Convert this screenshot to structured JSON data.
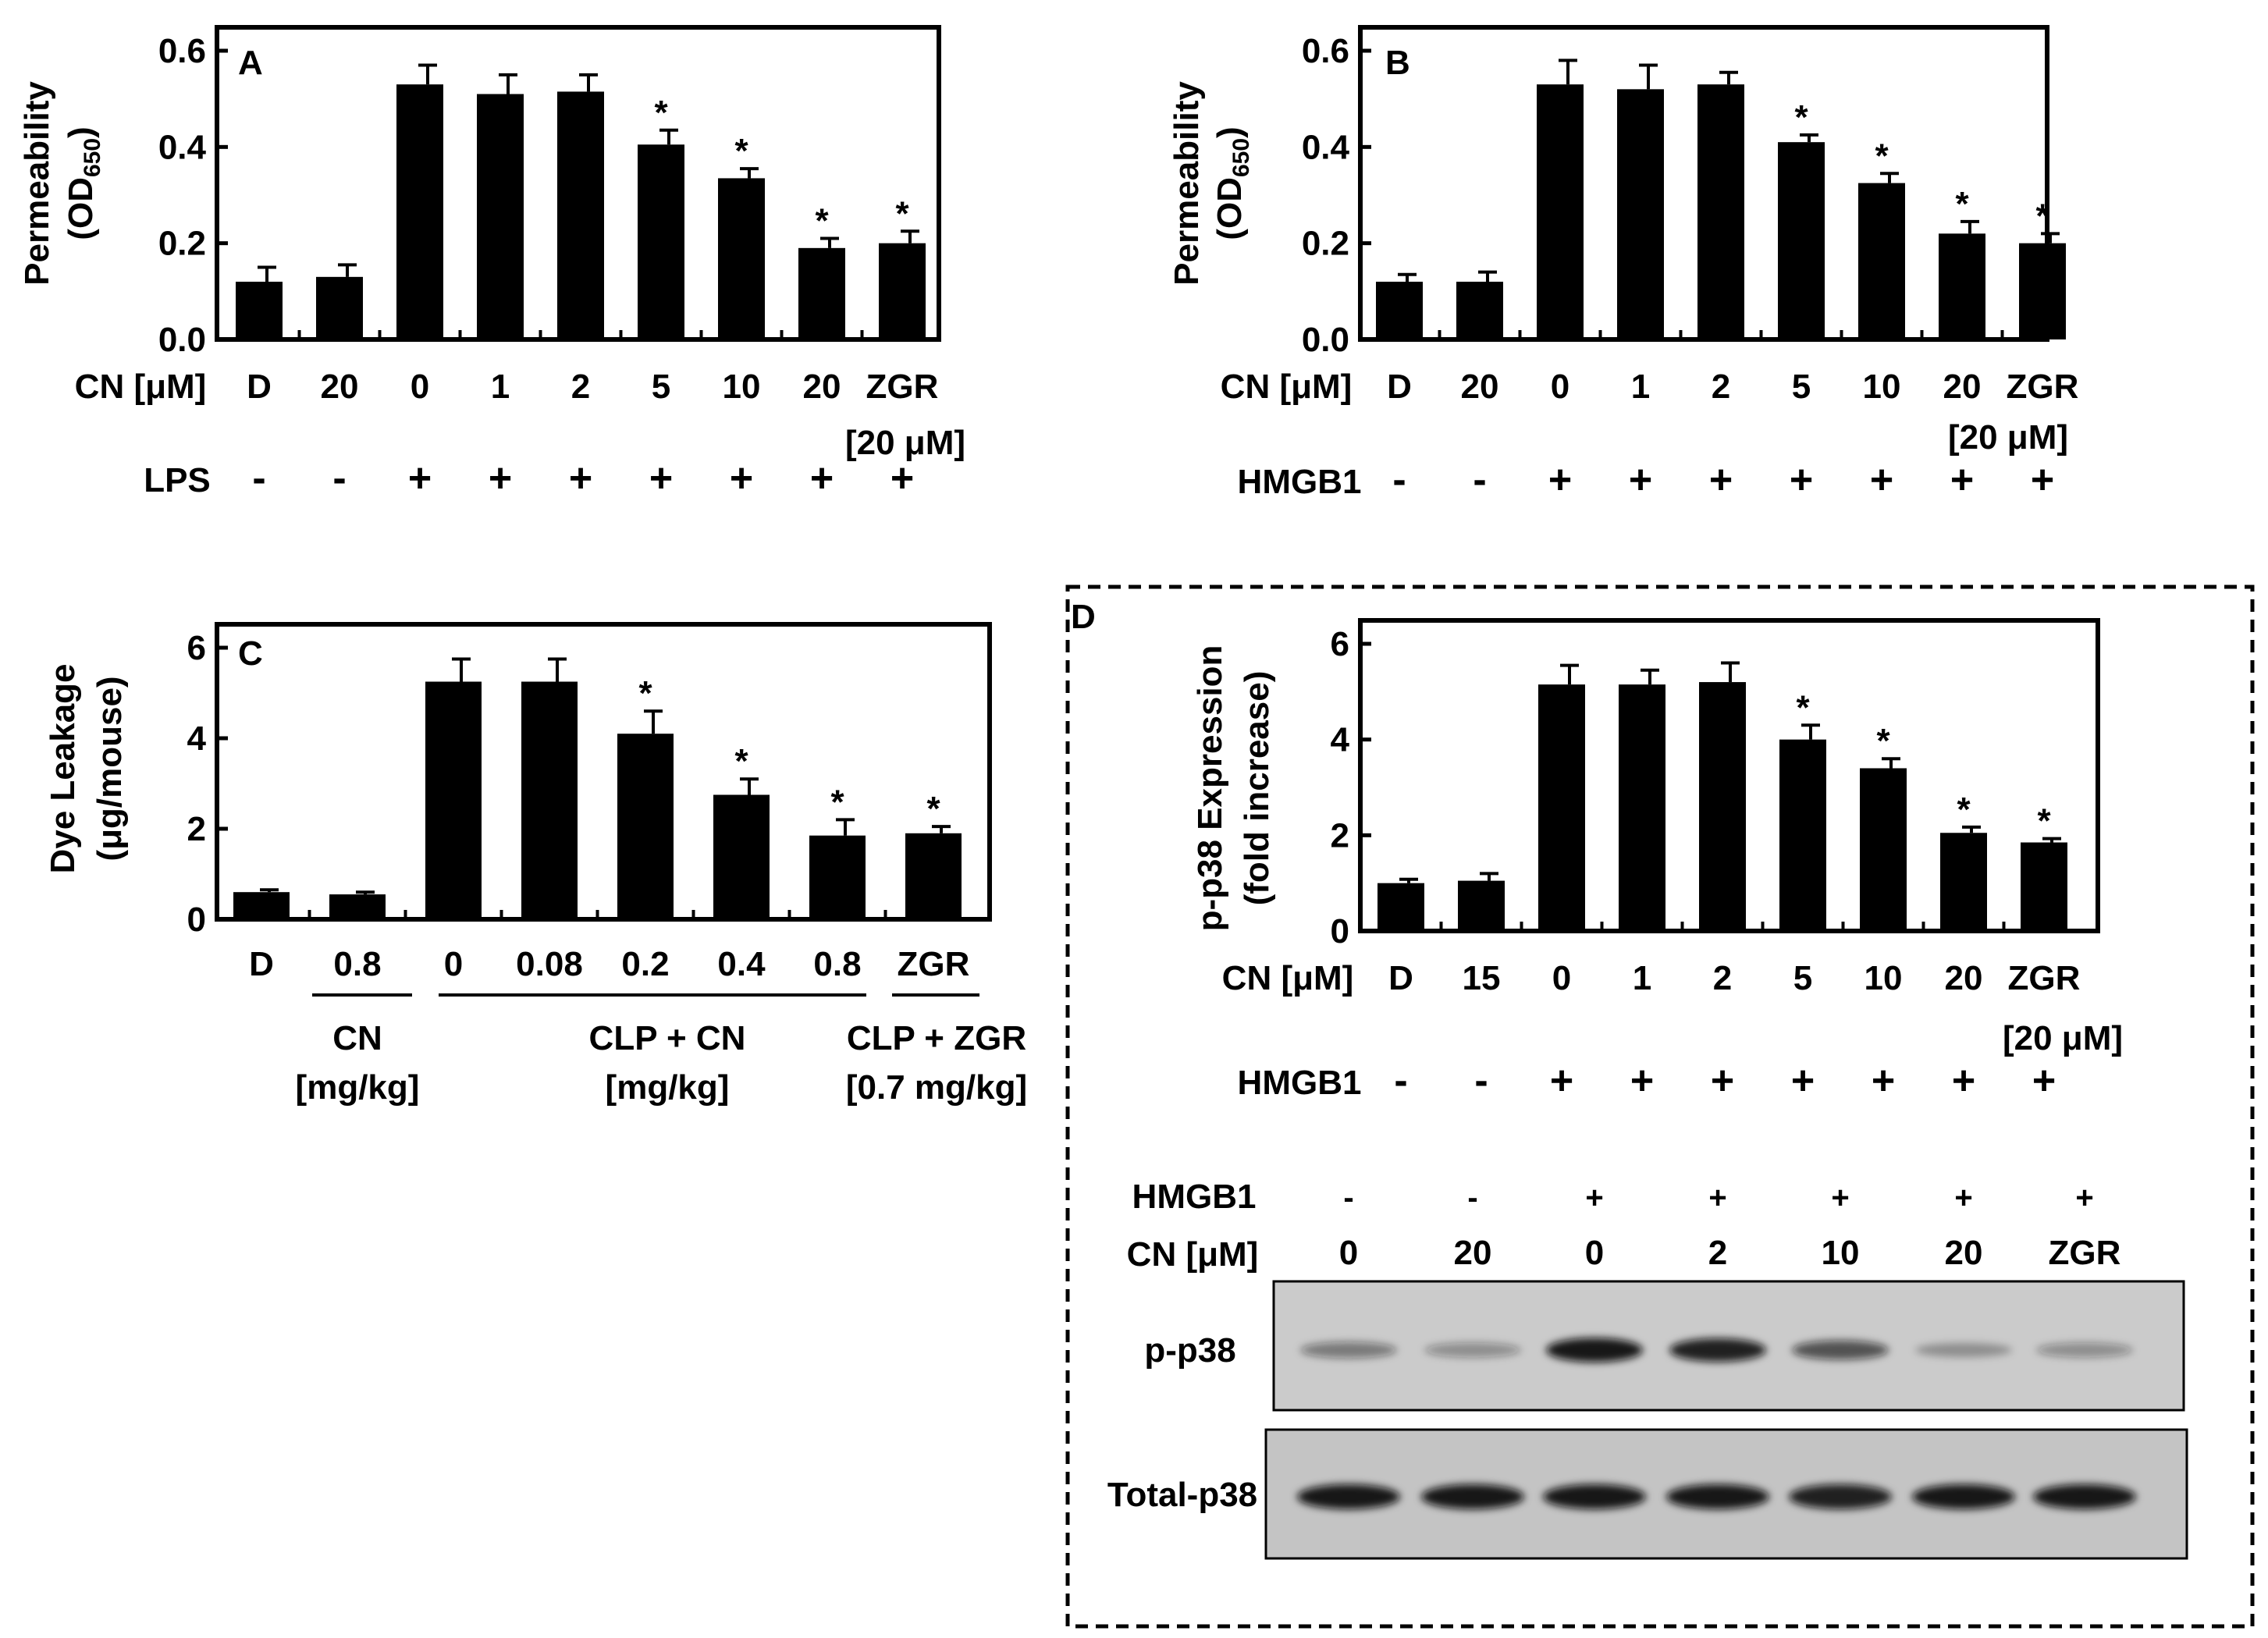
{
  "panels": {
    "A": {
      "letter": "A",
      "ylabel_main": "Permeability",
      "ylabel_unit_prefix": "(OD",
      "ylabel_unit_sub": "650",
      "ylabel_unit_suffix": ")",
      "cn_label": "CN [μM]",
      "zgr_dose": "[20 μM]",
      "treatment_label": "LPS",
      "treatment_signs": [
        "-",
        "-",
        "+",
        "+",
        "+",
        "+",
        "+",
        "+",
        "+"
      ]
    },
    "B": {
      "letter": "B",
      "ylabel_main": "Permeability",
      "ylabel_unit_prefix": "(OD",
      "ylabel_unit_sub": "650",
      "ylabel_unit_suffix": ")",
      "cn_label": "CN [μM]",
      "zgr_dose": "[20 μM]",
      "treatment_label": "HMGB1",
      "treatment_signs": [
        "-",
        "-",
        "+",
        "+",
        "+",
        "+",
        "+",
        "+",
        "+"
      ]
    },
    "C": {
      "letter": "C",
      "ylabel_main": "Dye Leakage",
      "ylabel_unit": "(μg/mouse)",
      "groups": [
        {
          "line1": "CN",
          "line2": "[mg/kg]"
        },
        {
          "line1": "CLP + CN",
          "line2": "[mg/kg]"
        },
        {
          "line1": "CLP + ZGR",
          "line2": "[0.7 mg/kg]"
        }
      ]
    },
    "D": {
      "letter": "D",
      "ylabel_main": "p-p38 Expression",
      "ylabel_unit": "(fold increase)",
      "cn_label": "CN [μM]",
      "zgr_dose": "[20 μM]",
      "treatment_label": "HMGB1",
      "treatment_signs": [
        "-",
        "-",
        "+",
        "+",
        "+",
        "+",
        "+",
        "+",
        "+"
      ],
      "blot": {
        "hmgb1_label": "HMGB1",
        "hmgb1_signs": [
          "-",
          "-",
          "+",
          "+",
          "+",
          "+",
          "+"
        ],
        "cn_label": "CN [μM]",
        "cn_doses": [
          "0",
          "20",
          "0",
          "2",
          "10",
          "20",
          "ZGR"
        ],
        "row1_label": "p-p38",
        "row2_label": "Total-p38",
        "row1_intensity": [
          0.45,
          0.35,
          0.95,
          0.9,
          0.65,
          0.3,
          0.35
        ],
        "row2_intensity": [
          0.95,
          0.95,
          0.95,
          0.95,
          0.9,
          0.95,
          0.95
        ]
      }
    }
  },
  "chart_data": [
    {
      "type": "bar",
      "panel": "A",
      "categories": [
        "D",
        "20",
        "0",
        "1",
        "2",
        "5",
        "10",
        "20",
        "ZGR"
      ],
      "values": [
        0.12,
        0.13,
        0.53,
        0.51,
        0.515,
        0.405,
        0.335,
        0.19,
        0.2
      ],
      "errors": [
        0.03,
        0.025,
        0.04,
        0.04,
        0.035,
        0.03,
        0.02,
        0.02,
        0.025
      ],
      "significant": [
        false,
        false,
        false,
        false,
        false,
        true,
        true,
        true,
        true
      ],
      "ylim": [
        0,
        0.6
      ],
      "yticks": [
        "0.0",
        "0.2",
        "0.4",
        "0.6"
      ]
    },
    {
      "type": "bar",
      "panel": "B",
      "categories": [
        "D",
        "20",
        "0",
        "1",
        "2",
        "5",
        "10",
        "20",
        "ZGR"
      ],
      "values": [
        0.12,
        0.12,
        0.53,
        0.52,
        0.53,
        0.41,
        0.325,
        0.22,
        0.2
      ],
      "errors": [
        0.015,
        0.02,
        0.05,
        0.05,
        0.025,
        0.015,
        0.02,
        0.025,
        0.02
      ],
      "significant": [
        false,
        false,
        false,
        false,
        false,
        true,
        true,
        true,
        true
      ],
      "ylim": [
        0,
        0.6
      ],
      "yticks": [
        "0.0",
        "0.2",
        "0.4",
        "0.6"
      ]
    },
    {
      "type": "bar",
      "panel": "C",
      "categories": [
        "D",
        "0.8",
        "0",
        "0.08",
        "0.2",
        "0.4",
        "0.8",
        "ZGR"
      ],
      "values": [
        0.6,
        0.55,
        5.25,
        5.25,
        4.1,
        2.75,
        1.85,
        1.9
      ],
      "errors": [
        0.05,
        0.05,
        0.5,
        0.5,
        0.5,
        0.35,
        0.35,
        0.15
      ],
      "significant": [
        false,
        false,
        false,
        false,
        true,
        true,
        true,
        true
      ],
      "ylim": [
        0,
        6
      ],
      "yticks": [
        "0",
        "2",
        "4",
        "6"
      ]
    },
    {
      "type": "bar",
      "panel": "D",
      "categories": [
        "D",
        "15",
        "0",
        "1",
        "2",
        "5",
        "10",
        "20",
        "ZGR"
      ],
      "values": [
        1.0,
        1.05,
        5.15,
        5.15,
        5.2,
        4.0,
        3.4,
        2.05,
        1.85
      ],
      "errors": [
        0.08,
        0.15,
        0.4,
        0.3,
        0.4,
        0.3,
        0.2,
        0.12,
        0.08
      ],
      "significant": [
        false,
        false,
        false,
        false,
        false,
        true,
        true,
        true,
        true
      ],
      "ylim": [
        0,
        6
      ],
      "yticks": [
        "0",
        "2",
        "4",
        "6"
      ]
    }
  ]
}
